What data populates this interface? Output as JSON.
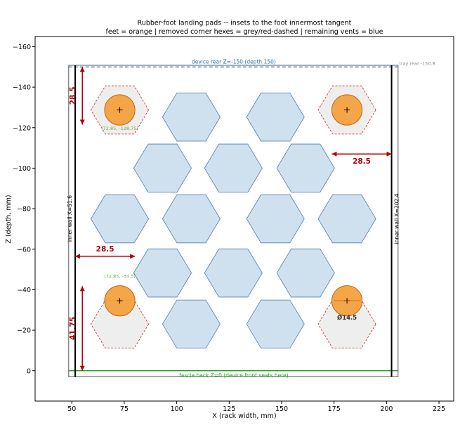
{
  "chart_data": {
    "type": "scatter",
    "title": "Rubber-foot landing pads -- insets to the foot innermost tangent",
    "subtitle": "feet = orange  |  removed corner hexes = grey/red-dashed  |  remaining vents = blue",
    "xlabel": "X  (rack width, mm)",
    "ylabel": "Z  (depth, mm)",
    "xlim": [
      32.5,
      232
    ],
    "ylim": [
      15,
      -165
    ],
    "y_inverted": true,
    "xticks": [
      50,
      75,
      100,
      125,
      150,
      175,
      200,
      225
    ],
    "yticks": [
      0,
      -20,
      -40,
      -60,
      -80,
      -100,
      -120,
      -140,
      -160
    ],
    "grid": false,
    "colors": {
      "foot": "#f39c34",
      "foot_edge": "#c0650f",
      "vent_fill": "#cfe0ef",
      "vent_edge": "#4f7eb3",
      "removed_fill": "#eeeeee",
      "removed_edge": "#c62828",
      "dimension": "#b00000",
      "fascia": "#2ca02c",
      "rear": "#1f77b4",
      "coord_label": "#6aa84f"
    },
    "tray": {
      "x": [
        48.5,
        205.5
      ],
      "z": [
        3,
        -150.8
      ]
    },
    "inner_walls": {
      "x_left": 51.6,
      "x_right": 202.4
    },
    "fascia_z": 0,
    "device_rear_z": -150,
    "hex_radius": 13.75,
    "feet": {
      "diameter": 14.5,
      "centers": [
        [
          72.85,
          -128.75
        ],
        [
          181.15,
          -128.75
        ],
        [
          72.85,
          -34.5
        ],
        [
          181.15,
          -34.5
        ]
      ]
    },
    "removed_hexes": [
      [
        72.85,
        -128.75
      ],
      [
        181.15,
        -128.75
      ],
      [
        72.85,
        -23.0
      ],
      [
        181.15,
        -23.0
      ]
    ],
    "vents": [
      [
        106.95,
        -125.25
      ],
      [
        147.05,
        -125.25
      ],
      [
        93.25,
        -100.0
      ],
      [
        127.0,
        -100.0
      ],
      [
        161.45,
        -100.0
      ],
      [
        72.85,
        -75.0
      ],
      [
        106.95,
        -75.0
      ],
      [
        147.05,
        -75.0
      ],
      [
        181.15,
        -75.0
      ],
      [
        93.25,
        -48.25
      ],
      [
        127.0,
        -48.25
      ],
      [
        161.45,
        -48.25
      ],
      [
        106.95,
        -23.0
      ],
      [
        147.05,
        -23.0
      ]
    ],
    "dimensions": [
      {
        "label": "28.5",
        "orientation": "vertical",
        "x": 55.0,
        "from": -150.0,
        "to": -121.5
      },
      {
        "label": "28.5",
        "orientation": "horizontal",
        "z": -107.0,
        "from": 173.9,
        "to": 202.4
      },
      {
        "label": "28.5",
        "orientation": "horizontal",
        "z": -56.5,
        "from": 51.6,
        "to": 80.1
      },
      {
        "label": "41.75",
        "orientation": "vertical",
        "x": 55.0,
        "from": -41.75,
        "to": 0.0
      }
    ],
    "annotations": {
      "device_rear": "device rear  Z=-150  (depth 150)",
      "tray_rear": "tray rear -150.8",
      "inner_wall_left": "inner wall  X=51.6",
      "inner_wall_right": "inner wall  X=202.4",
      "fascia": "fascia back  Z=0  (device front seats here)",
      "coord_top_left": "(72.85, -128.75)",
      "coord_bottom_left": "(72.85, -34.5)",
      "foot_diameter": "Ø14.5"
    }
  }
}
